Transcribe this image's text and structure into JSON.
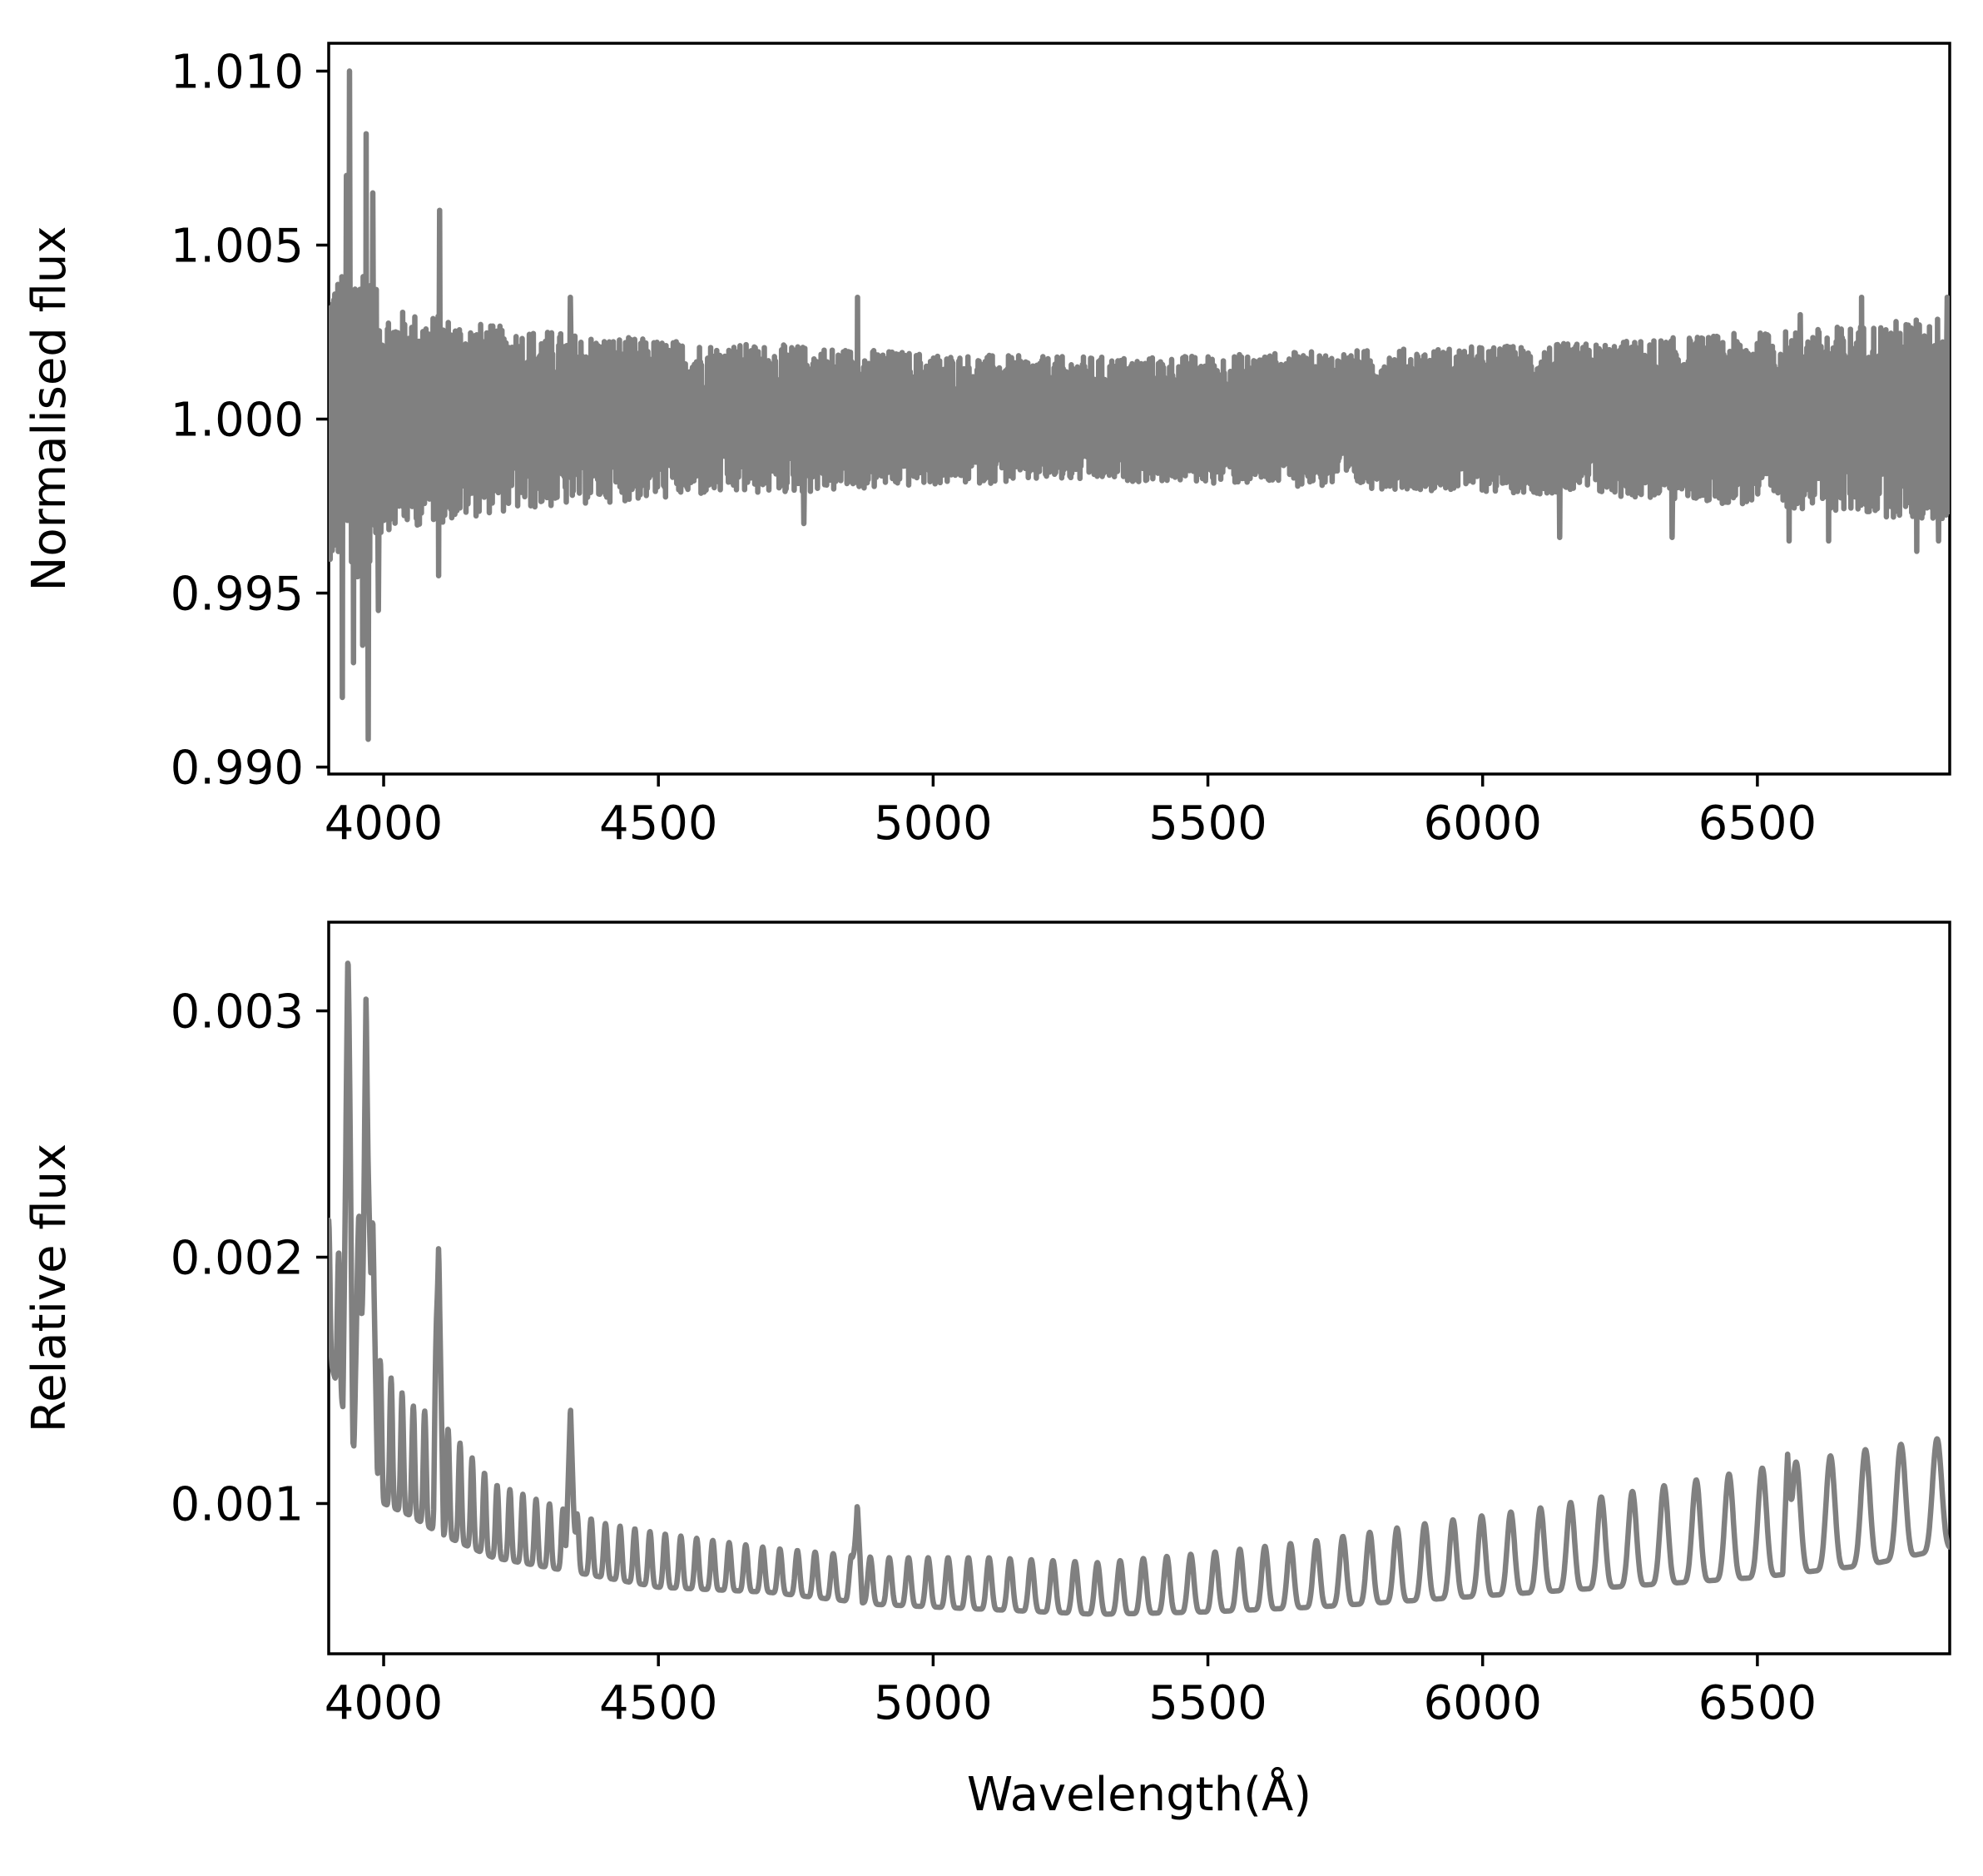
{
  "chart_data": [
    {
      "type": "line",
      "xlabel": "",
      "ylabel": "Normalised flux",
      "xlim": [
        3900,
        6850
      ],
      "ylim": [
        0.9898,
        1.0108
      ],
      "x_ticks": [
        4000,
        4500,
        5000,
        5500,
        6000,
        6500
      ],
      "x_tick_labels": [
        "4000",
        "4500",
        "5000",
        "5500",
        "6000",
        "6500"
      ],
      "y_ticks": [
        0.99,
        0.995,
        1.0,
        1.005,
        1.01
      ],
      "y_tick_labels": [
        "0.990",
        "0.995",
        "1.000",
        "1.005",
        "1.010"
      ],
      "grid": false,
      "legend": "none",
      "line_color": "#808080",
      "series": [
        {
          "style": "noisy-residual",
          "center": 1.0,
          "x": [
            3900,
            3960,
            4000,
            4100,
            4200,
            4400,
            4600,
            4800,
            5000,
            5200,
            5400,
            5600,
            5800,
            6000,
            6200,
            6400,
            6600,
            6850
          ],
          "envelope": [
            0.004,
            0.0048,
            0.0032,
            0.003,
            0.0027,
            0.0024,
            0.0022,
            0.0021,
            0.0019,
            0.0018,
            0.0018,
            0.0019,
            0.002,
            0.0021,
            0.0022,
            0.0024,
            0.0026,
            0.003
          ],
          "spikes": [
            {
              "x": 3925,
              "y": 0.992
            },
            {
              "x": 3932,
              "y": 1.007
            },
            {
              "x": 3938,
              "y": 1.01
            },
            {
              "x": 3945,
              "y": 0.993
            },
            {
              "x": 3955,
              "y": 1.0035
            },
            {
              "x": 3962,
              "y": 0.9935
            },
            {
              "x": 3968,
              "y": 1.0082
            },
            {
              "x": 3972,
              "y": 0.9908
            },
            {
              "x": 3980,
              "y": 1.0065
            },
            {
              "x": 3990,
              "y": 0.9945
            },
            {
              "x": 4102,
              "y": 1.006
            },
            {
              "x": 4100,
              "y": 0.9955
            },
            {
              "x": 4340,
              "y": 1.0035
            },
            {
              "x": 4862,
              "y": 1.0035
            },
            {
              "x": 4765,
              "y": 0.997
            },
            {
              "x": 6140,
              "y": 0.9966
            },
            {
              "x": 6345,
              "y": 0.9966
            },
            {
              "x": 6558,
              "y": 0.9965
            },
            {
              "x": 6578,
              "y": 1.003
            },
            {
              "x": 6630,
              "y": 0.9965
            },
            {
              "x": 6690,
              "y": 1.0035
            },
            {
              "x": 6790,
              "y": 0.9962
            },
            {
              "x": 6830,
              "y": 0.9965
            },
            {
              "x": 6845,
              "y": 1.0035
            }
          ]
        }
      ]
    },
    {
      "type": "line",
      "xlabel": "Wavelength(Å)",
      "ylabel": "Relative flux",
      "xlim": [
        3900,
        6850
      ],
      "ylim": [
        0.00039,
        0.00336
      ],
      "x_ticks": [
        4000,
        4500,
        5000,
        5500,
        6000,
        6500
      ],
      "x_tick_labels": [
        "4000",
        "4500",
        "5000",
        "5500",
        "6000",
        "6500"
      ],
      "y_ticks": [
        0.001,
        0.002,
        0.003
      ],
      "y_tick_labels": [
        "0.001",
        "0.002",
        "0.003"
      ],
      "grid": false,
      "legend": "none",
      "line_color": "#808080",
      "series": [
        {
          "style": "fringe-pattern",
          "baseline": {
            "x": [
              3900,
              3950,
              4000,
              4050,
              4100,
              4200,
              4300,
              4400,
              4500,
              4700,
              4900,
              5100,
              5300,
              5500,
              5700,
              5900,
              6100,
              6300,
              6500,
              6700,
              6850
            ],
            "y": [
              0.0016,
              0.0012,
              0.001,
              0.00095,
              0.00088,
              0.00078,
              0.00074,
              0.0007,
              0.00066,
              0.00064,
              0.00059,
              0.00057,
              0.00055,
              0.00056,
              0.00058,
              0.00061,
              0.00064,
              0.00067,
              0.0007,
              0.00075,
              0.00082
            ]
          },
          "peaks": {
            "x": [
              3900,
              3950,
              4000,
              4050,
              4100,
              4200,
              4300,
              4400,
              4500,
              4700,
              4900,
              5100,
              5300,
              5500,
              5700,
              5900,
              6100,
              6300,
              6500,
              6700,
              6850
            ],
            "y": [
              0.00215,
              0.0018,
              0.00155,
              0.0014,
              0.00135,
              0.00108,
              0.001,
              0.00092,
              0.00088,
              0.00082,
              0.00078,
              0.00078,
              0.00076,
              0.0008,
              0.00085,
              0.00092,
              0.00098,
              0.00106,
              0.00114,
              0.00122,
              0.00127
            ]
          },
          "spikes": [
            {
              "x": 3935,
              "y": 0.00325
            },
            {
              "x": 3968,
              "y": 0.00308
            },
            {
              "x": 3955,
              "y": 0.00218
            },
            {
              "x": 3980,
              "y": 0.00218
            },
            {
              "x": 3922,
              "y": 0.00113
            },
            {
              "x": 3942,
              "y": 0.00115
            },
            {
              "x": 4100,
              "y": 0.00205
            },
            {
              "x": 4340,
              "y": 0.0014
            },
            {
              "x": 4862,
              "y": 0.001
            },
            {
              "x": 6555,
              "y": 0.0012
            }
          ]
        }
      ]
    }
  ]
}
